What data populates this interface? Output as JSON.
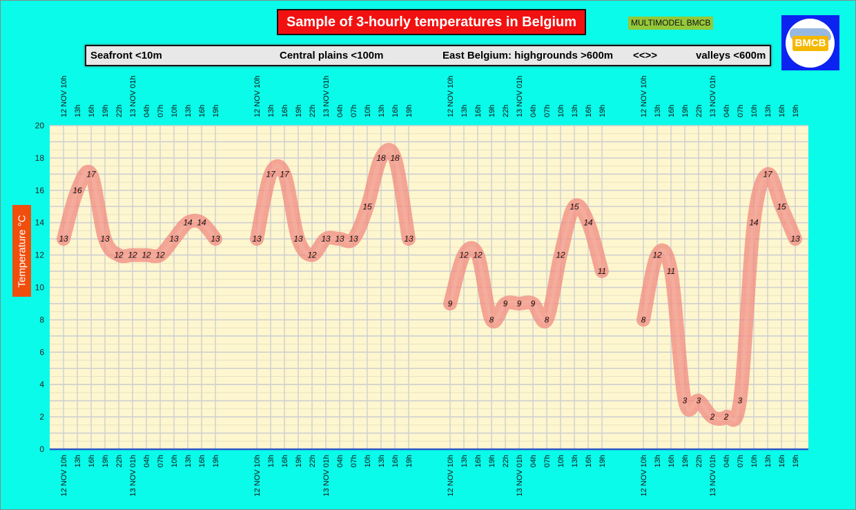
{
  "title": "Sample of 3-hourly temperatures in Belgium",
  "badge": "MULTIMODEL BMCB",
  "logo_text": "BMCB",
  "y_axis_label": "Temperature °C",
  "regions_bar": [
    "Seafront <10m",
    "Central plains <100m",
    "East Belgium: highgrounds >600m",
    "<<>>",
    "valleys <600m"
  ],
  "colors": {
    "background": "#0afbe9",
    "plot_bg": "#fdf6cf",
    "grid_major": "#cfcfcf",
    "band": "#f08a80",
    "title_bg": "#f21111",
    "ylabel_bg": "#f04e0c",
    "baseline": "#2b55c9"
  },
  "chart_data": {
    "type": "line",
    "title": "Sample of 3-hourly temperatures in Belgium",
    "ylabel": "Temperature °C",
    "ylim": [
      0,
      20
    ],
    "yticks": [
      0,
      2,
      4,
      6,
      8,
      10,
      12,
      14,
      16,
      18,
      20
    ],
    "grid": true,
    "categories": [
      "12 NOV 10h",
      "13h",
      "16h",
      "19h",
      "22h",
      "13 NOV 01h",
      "04h",
      "07h",
      "10h",
      "13h",
      "16h",
      "19h"
    ],
    "series": [
      {
        "name": "Seafront <10m",
        "values": [
          13,
          16,
          17,
          13,
          12,
          12,
          12,
          12,
          13,
          14,
          14,
          13
        ]
      },
      {
        "name": "Central plains <100m",
        "values": [
          13,
          17,
          17,
          13,
          12,
          13,
          13,
          13,
          15,
          18,
          18,
          13
        ]
      },
      {
        "name": "East Belgium: highgrounds >600m",
        "values": [
          9,
          12,
          12,
          8,
          9,
          9,
          9,
          8,
          12,
          15,
          14,
          11
        ]
      },
      {
        "name": "valleys <600m",
        "values": [
          8,
          12,
          11,
          3,
          3,
          2,
          2,
          3,
          14,
          17,
          15,
          13
        ]
      }
    ]
  }
}
